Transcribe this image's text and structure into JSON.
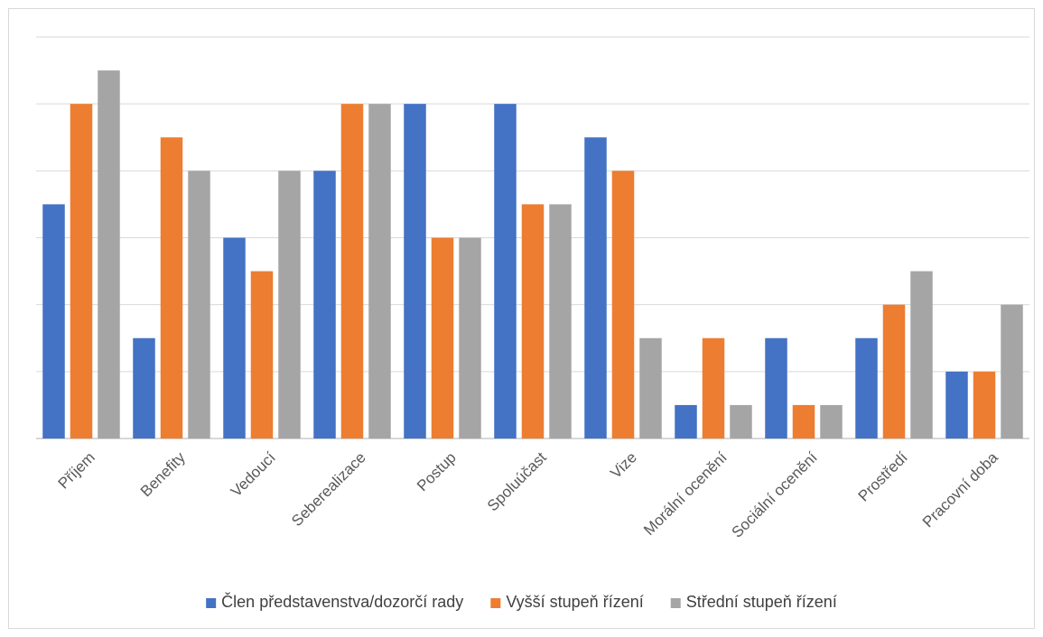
{
  "chart_data": {
    "type": "bar",
    "categories": [
      "Příjem",
      "Benefity",
      "Vedoucí",
      "Seberealizace",
      "Postup",
      "Spoluúčast",
      "Vize",
      "Morální ocenění",
      "Sociální ocenění",
      "Prostředí",
      "Pracovní doba"
    ],
    "series": [
      {
        "name": "Člen představenstva/dozorčí rady",
        "color": "#4472c4",
        "values": [
          7,
          3,
          6,
          8,
          10,
          10,
          9,
          1,
          3,
          3,
          2
        ]
      },
      {
        "name": "Vyšší stupeň řízení",
        "color": "#ed7d31",
        "values": [
          10,
          9,
          5,
          10,
          6,
          7,
          8,
          3,
          1,
          4,
          2
        ]
      },
      {
        "name": "Střední stupeň řízení",
        "color": "#a5a5a5",
        "values": [
          11,
          8,
          8,
          10,
          6,
          7,
          3,
          1,
          1,
          5,
          4
        ]
      }
    ],
    "ylim": [
      0,
      12
    ],
    "y_gridline_step": 2,
    "y_axis_labels_shown": false,
    "grid": true,
    "legend_position": "bottom",
    "title": "",
    "xlabel": "",
    "ylabel": ""
  }
}
